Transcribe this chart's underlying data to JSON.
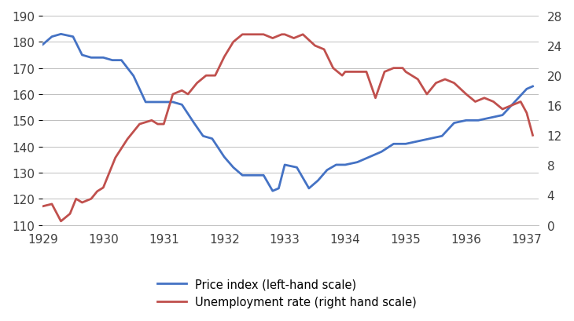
{
  "price_index": {
    "x": [
      1929.0,
      1929.15,
      1929.3,
      1929.5,
      1929.65,
      1929.8,
      1930.0,
      1930.15,
      1930.3,
      1930.5,
      1930.7,
      1930.9,
      1931.0,
      1931.15,
      1931.3,
      1931.5,
      1931.65,
      1931.8,
      1932.0,
      1932.15,
      1932.3,
      1932.5,
      1932.65,
      1932.8,
      1932.9,
      1933.0,
      1933.2,
      1933.4,
      1933.55,
      1933.7,
      1933.85,
      1934.0,
      1934.2,
      1934.4,
      1934.6,
      1934.8,
      1935.0,
      1935.2,
      1935.4,
      1935.6,
      1935.8,
      1936.0,
      1936.2,
      1936.4,
      1936.6,
      1936.8,
      1937.0,
      1937.1
    ],
    "y": [
      179,
      182,
      183,
      182,
      175,
      174,
      174,
      173,
      173,
      167,
      157,
      157,
      157,
      157,
      156,
      149,
      144,
      143,
      136,
      132,
      129,
      129,
      129,
      123,
      124,
      133,
      132,
      124,
      127,
      131,
      133,
      133,
      134,
      136,
      138,
      141,
      141,
      142,
      143,
      144,
      149,
      150,
      150,
      151,
      152,
      157,
      162,
      163
    ]
  },
  "unemployment": {
    "x": [
      1929.0,
      1929.15,
      1929.3,
      1929.45,
      1929.55,
      1929.65,
      1929.8,
      1929.9,
      1930.0,
      1930.2,
      1930.4,
      1930.6,
      1930.8,
      1930.9,
      1931.0,
      1931.15,
      1931.3,
      1931.4,
      1931.55,
      1931.7,
      1931.85,
      1932.0,
      1932.15,
      1932.3,
      1932.5,
      1932.65,
      1932.8,
      1932.95,
      1933.0,
      1933.15,
      1933.3,
      1933.5,
      1933.65,
      1933.8,
      1933.95,
      1934.0,
      1934.2,
      1934.35,
      1934.5,
      1934.65,
      1934.8,
      1934.95,
      1935.0,
      1935.2,
      1935.35,
      1935.5,
      1935.65,
      1935.8,
      1936.0,
      1936.15,
      1936.3,
      1936.45,
      1936.6,
      1936.75,
      1936.9,
      1937.0,
      1937.1
    ],
    "y": [
      2.5,
      2.8,
      0.5,
      1.5,
      3.5,
      3.0,
      3.5,
      4.5,
      5.0,
      9.0,
      11.5,
      13.5,
      14.0,
      13.5,
      13.5,
      17.5,
      18.0,
      17.5,
      19.0,
      20.0,
      20.0,
      22.5,
      24.5,
      25.5,
      25.5,
      25.5,
      25.0,
      25.5,
      25.5,
      25.0,
      25.5,
      24.0,
      23.5,
      21.0,
      20.0,
      20.5,
      20.5,
      20.5,
      17.0,
      20.5,
      21.0,
      21.0,
      20.5,
      19.5,
      17.5,
      19.0,
      19.5,
      19.0,
      17.5,
      16.5,
      17.0,
      16.5,
      15.5,
      16.0,
      16.5,
      15.0,
      12.0
    ]
  },
  "left_ylim": [
    110,
    190
  ],
  "left_yticks": [
    110,
    120,
    130,
    140,
    150,
    160,
    170,
    180,
    190
  ],
  "right_ylim": [
    0,
    28
  ],
  "right_yticks": [
    0,
    4,
    8,
    12,
    16,
    20,
    24,
    28
  ],
  "xlim": [
    1929.0,
    1937.2
  ],
  "xticks": [
    1929,
    1930,
    1931,
    1932,
    1933,
    1934,
    1935,
    1936,
    1937
  ],
  "price_color": "#4472C4",
  "unemp_color": "#C0504D",
  "legend_price": "Price index (left-hand scale)",
  "legend_unemp": "Unemployment rate (right hand scale)",
  "grid_color": "#BFBFBF",
  "background_color": "#FFFFFF"
}
